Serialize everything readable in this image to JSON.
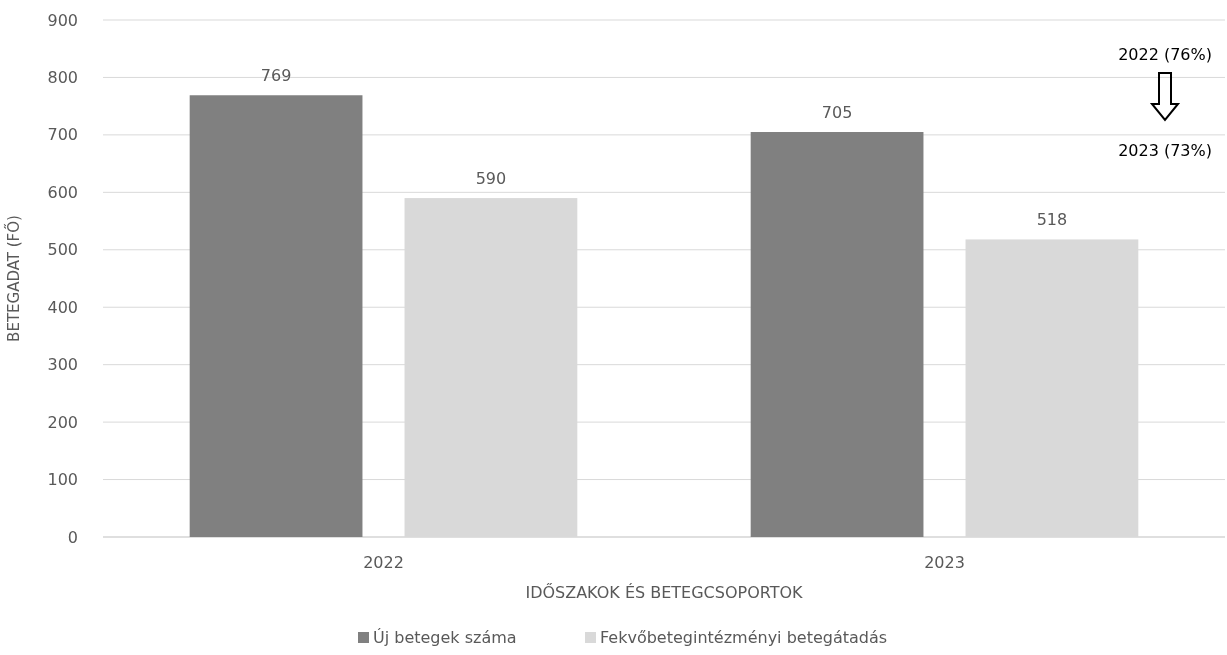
{
  "chart_data": {
    "type": "bar",
    "xlabel": "IDŐSZAKOK ÉS BETEGCSOPORTOK",
    "ylabel": "BETEGADAT (FŐ)",
    "categories": [
      "2022",
      "2023"
    ],
    "series": [
      {
        "name": "Új betegek száma",
        "color": "#808080",
        "values": [
          769,
          705
        ]
      },
      {
        "name": "Fekvőbetegintézményi betegátadás",
        "color": "#d9d9d9",
        "values": [
          590,
          518
        ]
      }
    ],
    "ylim": [
      0,
      900
    ],
    "yticks": [
      0,
      100,
      200,
      300,
      400,
      500,
      600,
      700,
      800,
      900
    ],
    "grid": "y",
    "legend": "bottom",
    "data_labels": true,
    "annotations": [
      "2022 (76%)",
      "2023 (73%)"
    ]
  }
}
